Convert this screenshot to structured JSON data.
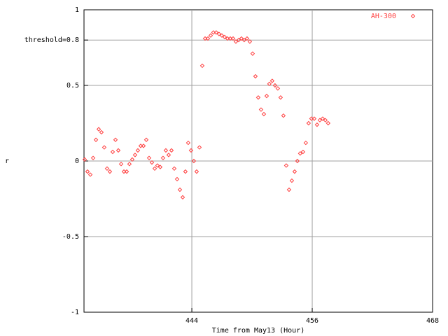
{
  "chart_data": {
    "type": "scatter",
    "x_label": "Time from May13 (Hour)",
    "y_label": "r",
    "xlim": [
      433.25,
      468
    ],
    "xticks": [
      444,
      456,
      468
    ],
    "ylim": [
      -1,
      1
    ],
    "yticks": [
      -1,
      -0.5,
      0,
      0.5,
      {
        "value": 0.8,
        "label": "threshold=0.8"
      },
      1
    ],
    "grid": true,
    "legend": "top-right",
    "series": [
      {
        "name": "AH-300",
        "color": "#ff4040",
        "x": [
          433.32,
          433.6,
          433.88,
          434.16,
          434.44,
          434.72,
          434.99,
          435.27,
          435.55,
          435.83,
          436.11,
          436.39,
          436.67,
          436.95,
          437.23,
          437.51,
          437.78,
          438.06,
          438.34,
          438.62,
          438.9,
          439.18,
          439.46,
          439.74,
          440.02,
          440.3,
          440.57,
          440.85,
          441.13,
          441.41,
          441.69,
          441.97,
          442.25,
          442.53,
          442.81,
          443.09,
          443.36,
          443.64,
          443.92,
          444.2,
          444.48,
          444.76,
          445.04,
          445.32,
          445.6,
          445.88,
          446.15,
          446.43,
          446.71,
          446.99,
          447.27,
          447.55,
          447.83,
          448.11,
          448.39,
          448.67,
          448.94,
          449.22,
          449.5,
          449.78,
          450.06,
          450.34,
          450.62,
          450.9,
          451.18,
          451.46,
          451.73,
          452.01,
          452.29,
          452.57,
          452.85,
          453.13,
          453.41,
          453.69,
          453.97,
          454.25,
          454.52,
          454.8,
          455.08,
          455.36,
          455.64,
          455.92,
          456.2,
          456.48,
          456.76,
          457.04,
          457.31,
          457.59
        ],
        "values": [
          0.01,
          -0.07,
          -0.09,
          0.02,
          0.14,
          0.21,
          0.19,
          0.09,
          -0.05,
          -0.07,
          0.06,
          0.14,
          0.07,
          -0.02,
          -0.07,
          -0.07,
          -0.02,
          0.01,
          0.04,
          0.07,
          0.1,
          0.1,
          0.14,
          0.02,
          -0.01,
          -0.05,
          -0.03,
          -0.04,
          0.02,
          0.07,
          0.04,
          0.07,
          -0.05,
          -0.12,
          -0.19,
          -0.24,
          -0.07,
          0.12,
          0.07,
          0.0,
          -0.07,
          0.09,
          0.63,
          0.81,
          0.81,
          0.83,
          0.85,
          0.85,
          0.84,
          0.83,
          0.82,
          0.81,
          0.81,
          0.81,
          0.79,
          0.8,
          0.81,
          0.8,
          0.81,
          0.79,
          0.71,
          0.56,
          0.42,
          0.34,
          0.31,
          0.43,
          0.51,
          0.53,
          0.5,
          0.48,
          0.42,
          0.3,
          -0.03,
          -0.19,
          -0.13,
          -0.07,
          0.0,
          0.05,
          0.06,
          0.12,
          0.25,
          0.28,
          0.28,
          0.24,
          0.27,
          0.28,
          0.27,
          0.25
        ]
      }
    ]
  }
}
